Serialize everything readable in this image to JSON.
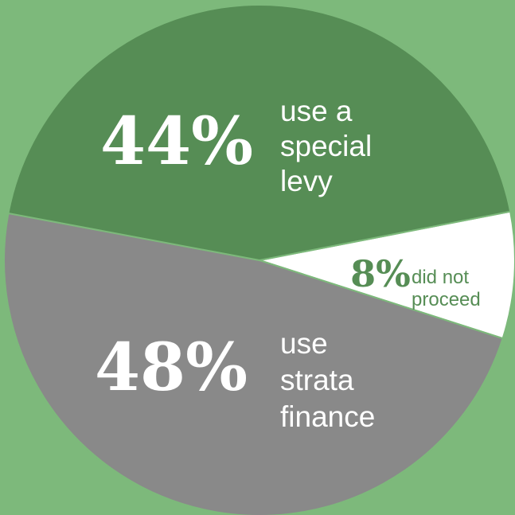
{
  "chart_data": {
    "type": "pie",
    "slices": [
      {
        "key": "special_levy",
        "value": 44,
        "percent_label": "44%",
        "label_lines": [
          "use a",
          "special",
          "levy"
        ],
        "color": "#568d55",
        "text_color": "#ffffff"
      },
      {
        "key": "did_not_proceed",
        "value": 8,
        "percent_label": "8%",
        "label_lines": [
          "did not",
          "proceed"
        ],
        "color": "#ffffff",
        "text_color": "#568d55"
      },
      {
        "key": "strata_finance",
        "value": 48,
        "percent_label": "48%",
        "label_lines": [
          "use",
          "strata",
          "finance"
        ],
        "color": "#898989",
        "text_color": "#ffffff"
      }
    ],
    "background_color": "#7db97b"
  }
}
